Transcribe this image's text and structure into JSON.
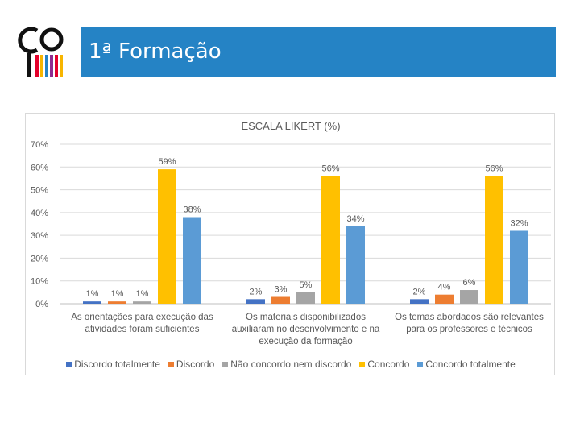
{
  "header": {
    "title": "1ª Formação"
  },
  "colors": {
    "title_bar": "#2583c5"
  },
  "logo": {
    "name": "logo-icon",
    "stripe_colors": [
      "#e4002b",
      "#f7b500",
      "#2583c5",
      "#8e2b8f",
      "#e4002b",
      "#f7b500"
    ]
  },
  "chart_data": {
    "type": "bar",
    "title": "ESCALA LIKERT (%)",
    "categories": [
      [
        "As orientações para execução das",
        "atividades foram suficientes"
      ],
      [
        "Os materiais disponibilizados",
        "auxiliaram no desenvolvimento e na",
        "execução da formação"
      ],
      [
        "Os temas abordados são relevantes",
        "para os professores e técnicos"
      ]
    ],
    "series": [
      {
        "name": "Discordo totalmente",
        "color": "#4472c4",
        "values": [
          1,
          2,
          2
        ],
        "labels": [
          "1%",
          "2%",
          "2%"
        ]
      },
      {
        "name": "Discordo",
        "color": "#ed7d31",
        "values": [
          1,
          3,
          4
        ],
        "labels": [
          "1%",
          "3%",
          "4%"
        ]
      },
      {
        "name": "Não concordo nem discordo",
        "color": "#a5a5a5",
        "values": [
          1,
          5,
          6
        ],
        "labels": [
          "1%",
          "5%",
          "6%"
        ]
      },
      {
        "name": "Concordo",
        "color": "#ffc000",
        "values": [
          59,
          56,
          56
        ],
        "labels": [
          "59%",
          "56%",
          "56%"
        ]
      },
      {
        "name": "Concordo totalmente",
        "color": "#5b9bd5",
        "values": [
          38,
          34,
          32
        ],
        "labels": [
          "38%",
          "34%",
          "32%"
        ]
      }
    ],
    "ylim": [
      0,
      70
    ],
    "yticks": [
      0,
      10,
      20,
      30,
      40,
      50,
      60,
      70
    ],
    "ytick_labels": [
      "0%",
      "10%",
      "20%",
      "30%",
      "40%",
      "50%",
      "60%",
      "70%"
    ],
    "grid": true,
    "legend": "bottom"
  }
}
